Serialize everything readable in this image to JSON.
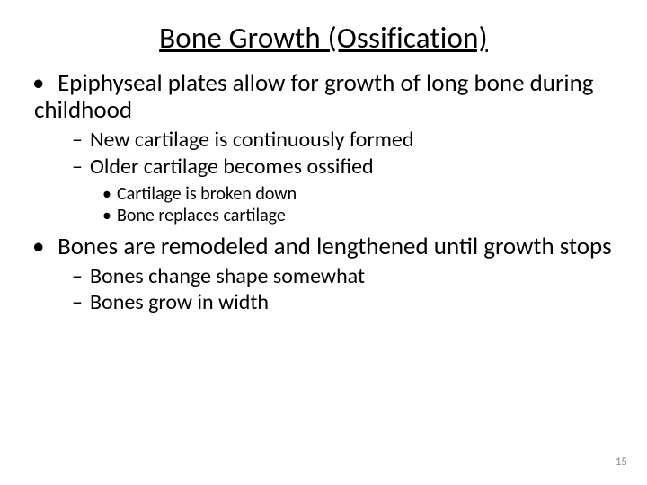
{
  "title": "Bone Growth (Ossification)",
  "page_number": "15",
  "fontsizes": {
    "title": 33,
    "level1": 27,
    "level2": 24,
    "level3": 20
  },
  "colors": {
    "text": "#000000",
    "background": "#ffffff",
    "pagenum": "#8a8a8a"
  },
  "bullets": {
    "l1": [
      {
        "text": "Epiphyseal plates allow for growth of long bone during childhood",
        "l2": [
          {
            "text": "New cartilage is continuously formed"
          },
          {
            "text": "Older cartilage becomes ossified",
            "l3": [
              {
                "text": "Cartilage is broken down"
              },
              {
                "text": "Bone replaces cartilage"
              }
            ]
          }
        ]
      },
      {
        "text": "Bones are remodeled and lengthened until growth stops",
        "l2": [
          {
            "text": "Bones change shape somewhat"
          },
          {
            "text": "Bones grow in width"
          }
        ]
      }
    ]
  }
}
